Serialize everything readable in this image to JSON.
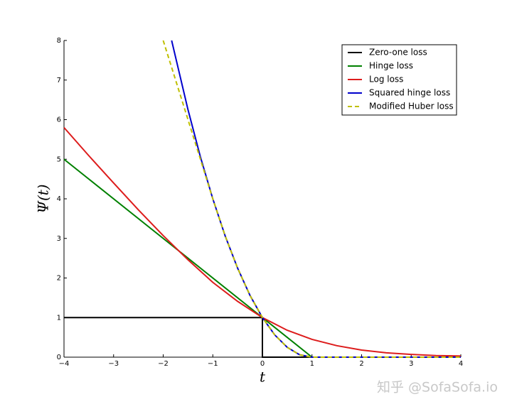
{
  "chart_data": {
    "type": "line",
    "xlabel": "t",
    "ylabel": "Ψ(t)",
    "xlim": [
      -4,
      4
    ],
    "ylim": [
      0,
      8
    ],
    "xticks": [
      {
        "value": -4,
        "label": "−4"
      },
      {
        "value": -3,
        "label": "−3"
      },
      {
        "value": -2,
        "label": "−2"
      },
      {
        "value": -1,
        "label": "−1"
      },
      0,
      1,
      2,
      3,
      4
    ],
    "yticks": [
      0,
      1,
      2,
      3,
      4,
      5,
      6,
      7,
      8
    ],
    "legend": "upper right",
    "series": [
      {
        "name": "Zero-one loss",
        "color": "#000000",
        "linestyle": "solid",
        "x": [
          -4,
          0,
          0,
          4
        ],
        "values": [
          1,
          1,
          0,
          0
        ]
      },
      {
        "name": "Hinge loss",
        "color": "#008000",
        "linestyle": "solid",
        "x": [
          -4,
          1,
          4
        ],
        "values": [
          5,
          0,
          0
        ]
      },
      {
        "name": "Log loss",
        "color": "#dd1c1c",
        "linestyle": "solid",
        "x": [
          -4,
          -3.5,
          -3,
          -2.5,
          -2,
          -1.5,
          -1,
          -0.5,
          0,
          0.5,
          1,
          1.5,
          2,
          2.5,
          3,
          3.5,
          4
        ],
        "values": [
          5.8,
          5.09,
          4.4,
          3.72,
          3.07,
          2.46,
          1.89,
          1.41,
          1,
          0.68,
          0.45,
          0.29,
          0.18,
          0.11,
          0.07,
          0.04,
          0.03
        ]
      },
      {
        "name": "Squared hinge loss",
        "color": "#0000cc",
        "linestyle": "solid",
        "x": [
          -1.83,
          -1.5,
          -1.25,
          -1,
          -0.75,
          -0.5,
          -0.25,
          0,
          0.25,
          0.5,
          0.75,
          1,
          4
        ],
        "values": [
          8,
          6.25,
          5.06,
          4,
          3.06,
          2.25,
          1.56,
          1,
          0.56,
          0.25,
          0.06,
          0,
          0
        ]
      },
      {
        "name": "Modified Huber loss",
        "color": "#bfbf00",
        "linestyle": "dashed",
        "x": [
          -2,
          -1,
          -0.75,
          -0.5,
          -0.25,
          0,
          0.25,
          0.5,
          0.75,
          1,
          4
        ],
        "values": [
          8,
          4,
          3.06,
          2.25,
          1.56,
          1,
          0.56,
          0.25,
          0.06,
          0,
          0
        ]
      }
    ],
    "watermark": "知乎 @SofaSofa.io"
  }
}
